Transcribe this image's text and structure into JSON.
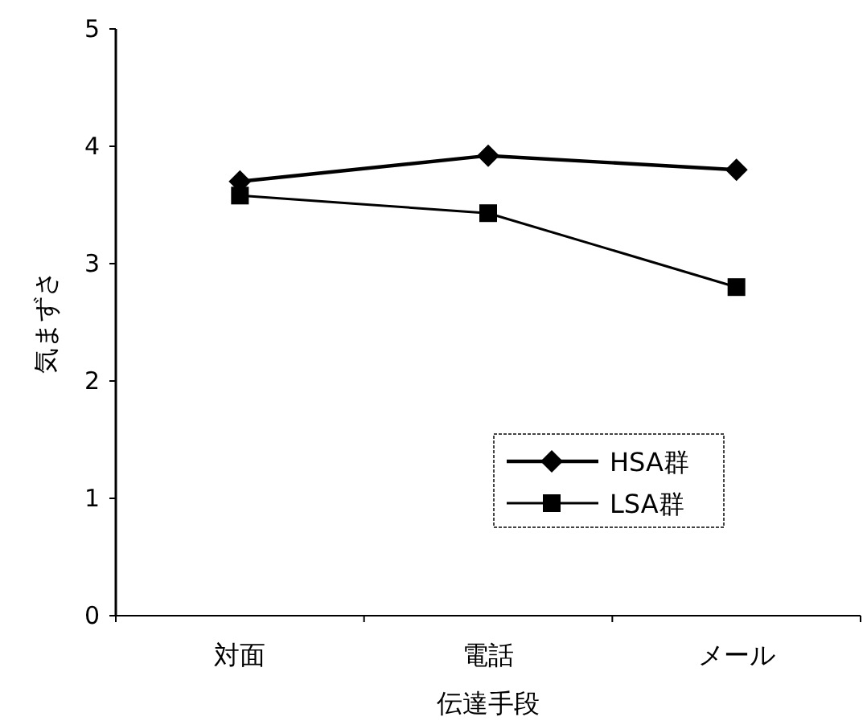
{
  "chart_data": {
    "type": "line",
    "xlabel": "伝達手段",
    "ylabel": "気まずさ",
    "categories": [
      "対面",
      "電話",
      "メール"
    ],
    "series": [
      {
        "name": "HSA群",
        "color": "#000000",
        "marker": "diamond",
        "values": [
          3.7,
          3.92,
          3.8
        ]
      },
      {
        "name": "LSA群",
        "color": "#000000",
        "marker": "square",
        "values": [
          3.58,
          3.43,
          2.8
        ]
      }
    ],
    "ylim": [
      0,
      5
    ],
    "yticks": [
      0,
      1,
      2,
      3,
      4,
      5
    ],
    "legend": "bottom right",
    "grid": false
  }
}
